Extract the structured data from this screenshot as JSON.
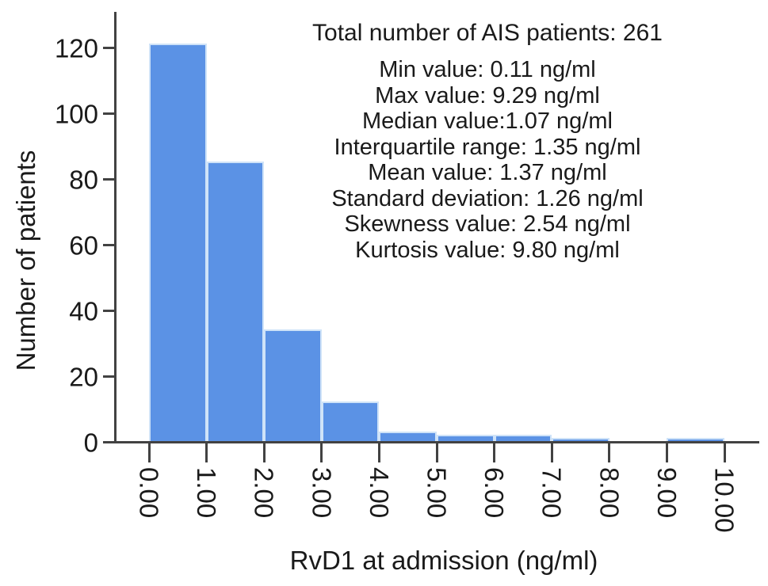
{
  "chart_data": {
    "type": "bar",
    "subtype": "histogram",
    "title": "",
    "xlabel": "RvD1 at admission (ng/ml)",
    "ylabel": "Number of patients",
    "bin_edges": [
      0,
      1,
      2,
      3,
      4,
      5,
      6,
      7,
      8,
      9,
      10
    ],
    "values": [
      121,
      85,
      34,
      12,
      3,
      2,
      2,
      1,
      0,
      1
    ],
    "x_tick_labels": [
      "0.00",
      "1.00",
      "2.00",
      "3.00",
      "4.00",
      "5.00",
      "6.00",
      "7.00",
      "8.00",
      "9.00",
      "10.00"
    ],
    "y_ticks": [
      0,
      20,
      40,
      60,
      80,
      100,
      120
    ],
    "ylim": [
      0,
      131
    ],
    "xlim": [
      -0.57,
      10.6
    ],
    "grid": false,
    "legend": null,
    "bar_color": "#5b92e5",
    "bar_edge_color": "#cfe3f8",
    "axis_color": "#424242",
    "text_color": "#1a1a1a",
    "annotations": {
      "header": "Total number of AIS patients: 261",
      "stats_lines": [
        "Min value: 0.11 ng/ml",
        "Max value: 9.29 ng/ml",
        "Median value:1.07 ng/ml",
        "Interquartile range: 1.35 ng/ml",
        "Mean value: 1.37 ng/ml",
        "Standard deviation: 1.26 ng/ml",
        "Skewness value: 2.54 ng/ml",
        "Kurtosis value: 9.80 ng/ml"
      ]
    }
  }
}
